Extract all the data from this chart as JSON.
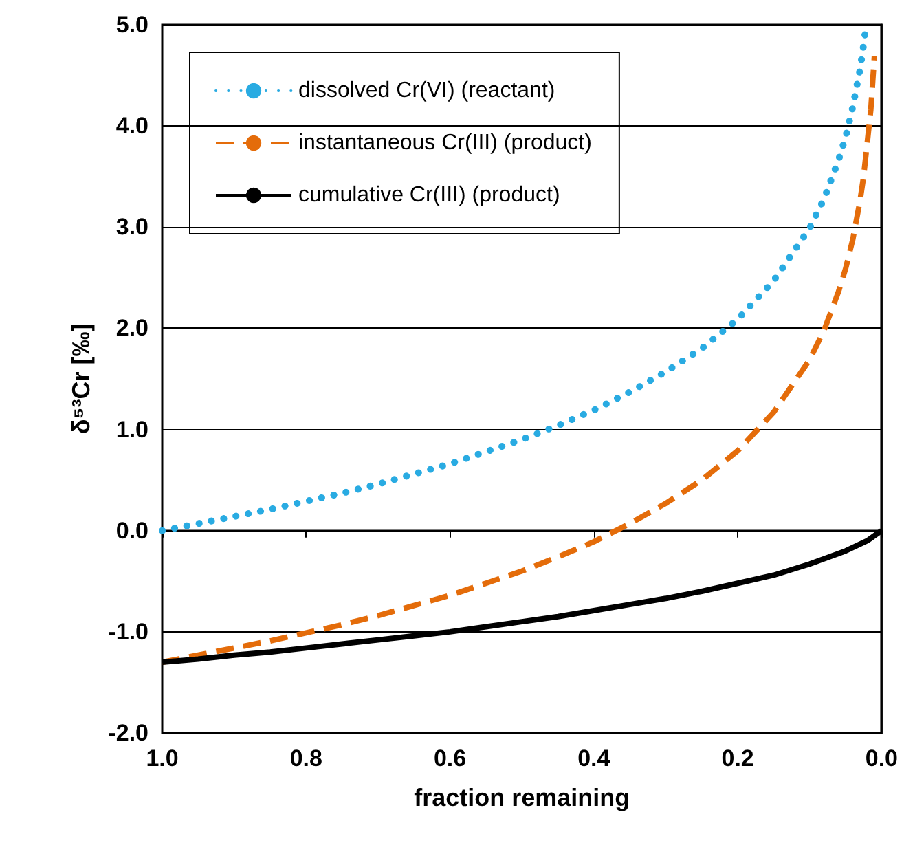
{
  "chart_data": {
    "type": "line",
    "xlabel": "fraction remaining",
    "ylabel": "δ⁵³Cr [‰]",
    "xlim": [
      1,
      0
    ],
    "xticks": [
      {
        "value": 1,
        "label": "1.0"
      },
      {
        "value": 0.8,
        "label": "0.8"
      },
      {
        "value": 0.6,
        "label": "0.6"
      },
      {
        "value": 0.4,
        "label": "0.4"
      },
      {
        "value": 0.2,
        "label": "0.2"
      },
      {
        "value": 0,
        "label": "0.0"
      }
    ],
    "ylim": [
      -2,
      5
    ],
    "yticks": [
      {
        "value": -2,
        "label": "-2.0"
      },
      {
        "value": -1,
        "label": "-1.0"
      },
      {
        "value": 0,
        "label": "0.0"
      },
      {
        "value": 1,
        "label": "1.0"
      },
      {
        "value": 2,
        "label": "2.0"
      },
      {
        "value": 3,
        "label": "3.0"
      },
      {
        "value": 4,
        "label": "4.0"
      },
      {
        "value": 5,
        "label": "5.0"
      }
    ],
    "grid": "y",
    "legend": "top left",
    "marker": "none",
    "series": [
      {
        "name": "dissolved Cr(VI) (reactant)",
        "color": "#29abe2",
        "line_style": "dotted",
        "x": [
          1,
          0.95,
          0.9,
          0.85,
          0.8,
          0.75,
          0.7,
          0.65,
          0.6,
          0.55,
          0.5,
          0.45,
          0.4,
          0.35,
          0.3,
          0.25,
          0.2,
          0.15,
          0.1,
          0.08,
          0.06,
          0.05,
          0.04,
          0.03,
          0.025,
          0.0215
        ],
        "values": [
          0,
          0.07,
          0.14,
          0.21,
          0.29,
          0.37,
          0.46,
          0.56,
          0.66,
          0.78,
          0.9,
          1.04,
          1.19,
          1.37,
          1.57,
          1.8,
          2.09,
          2.47,
          2.99,
          3.28,
          3.66,
          3.89,
          4.19,
          4.56,
          4.8,
          5.0
        ]
      },
      {
        "name": "instantaneous Cr(III) (product)",
        "color": "#e46c0a",
        "line_style": "dashed",
        "x": [
          1,
          0.95,
          0.9,
          0.85,
          0.8,
          0.75,
          0.7,
          0.65,
          0.6,
          0.55,
          0.5,
          0.45,
          0.4,
          0.35,
          0.3,
          0.25,
          0.2,
          0.15,
          0.1,
          0.08,
          0.06,
          0.05,
          0.04,
          0.03,
          0.025,
          0.015,
          0.01
        ],
        "values": [
          -1.3,
          -1.23,
          -1.16,
          -1.09,
          -1.01,
          -0.93,
          -0.84,
          -0.74,
          -0.64,
          -0.52,
          -0.4,
          -0.26,
          -0.11,
          0.07,
          0.27,
          0.5,
          0.79,
          1.17,
          1.69,
          1.98,
          2.36,
          2.59,
          2.88,
          3.26,
          3.5,
          4.16,
          4.69
        ]
      },
      {
        "name": "cumulative Cr(III) (product)",
        "color": "#000000",
        "line_style": "solid",
        "x": [
          1,
          0.95,
          0.9,
          0.85,
          0.8,
          0.75,
          0.7,
          0.65,
          0.6,
          0.55,
          0.5,
          0.45,
          0.4,
          0.35,
          0.3,
          0.25,
          0.2,
          0.15,
          0.1,
          0.05,
          0.02,
          0
        ],
        "values": [
          -1.3,
          -1.27,
          -1.23,
          -1.2,
          -1.16,
          -1.12,
          -1.08,
          -1.04,
          -1.0,
          -0.95,
          -0.9,
          -0.85,
          -0.79,
          -0.73,
          -0.67,
          -0.6,
          -0.52,
          -0.44,
          -0.33,
          -0.2,
          -0.1,
          0
        ]
      }
    ]
  }
}
